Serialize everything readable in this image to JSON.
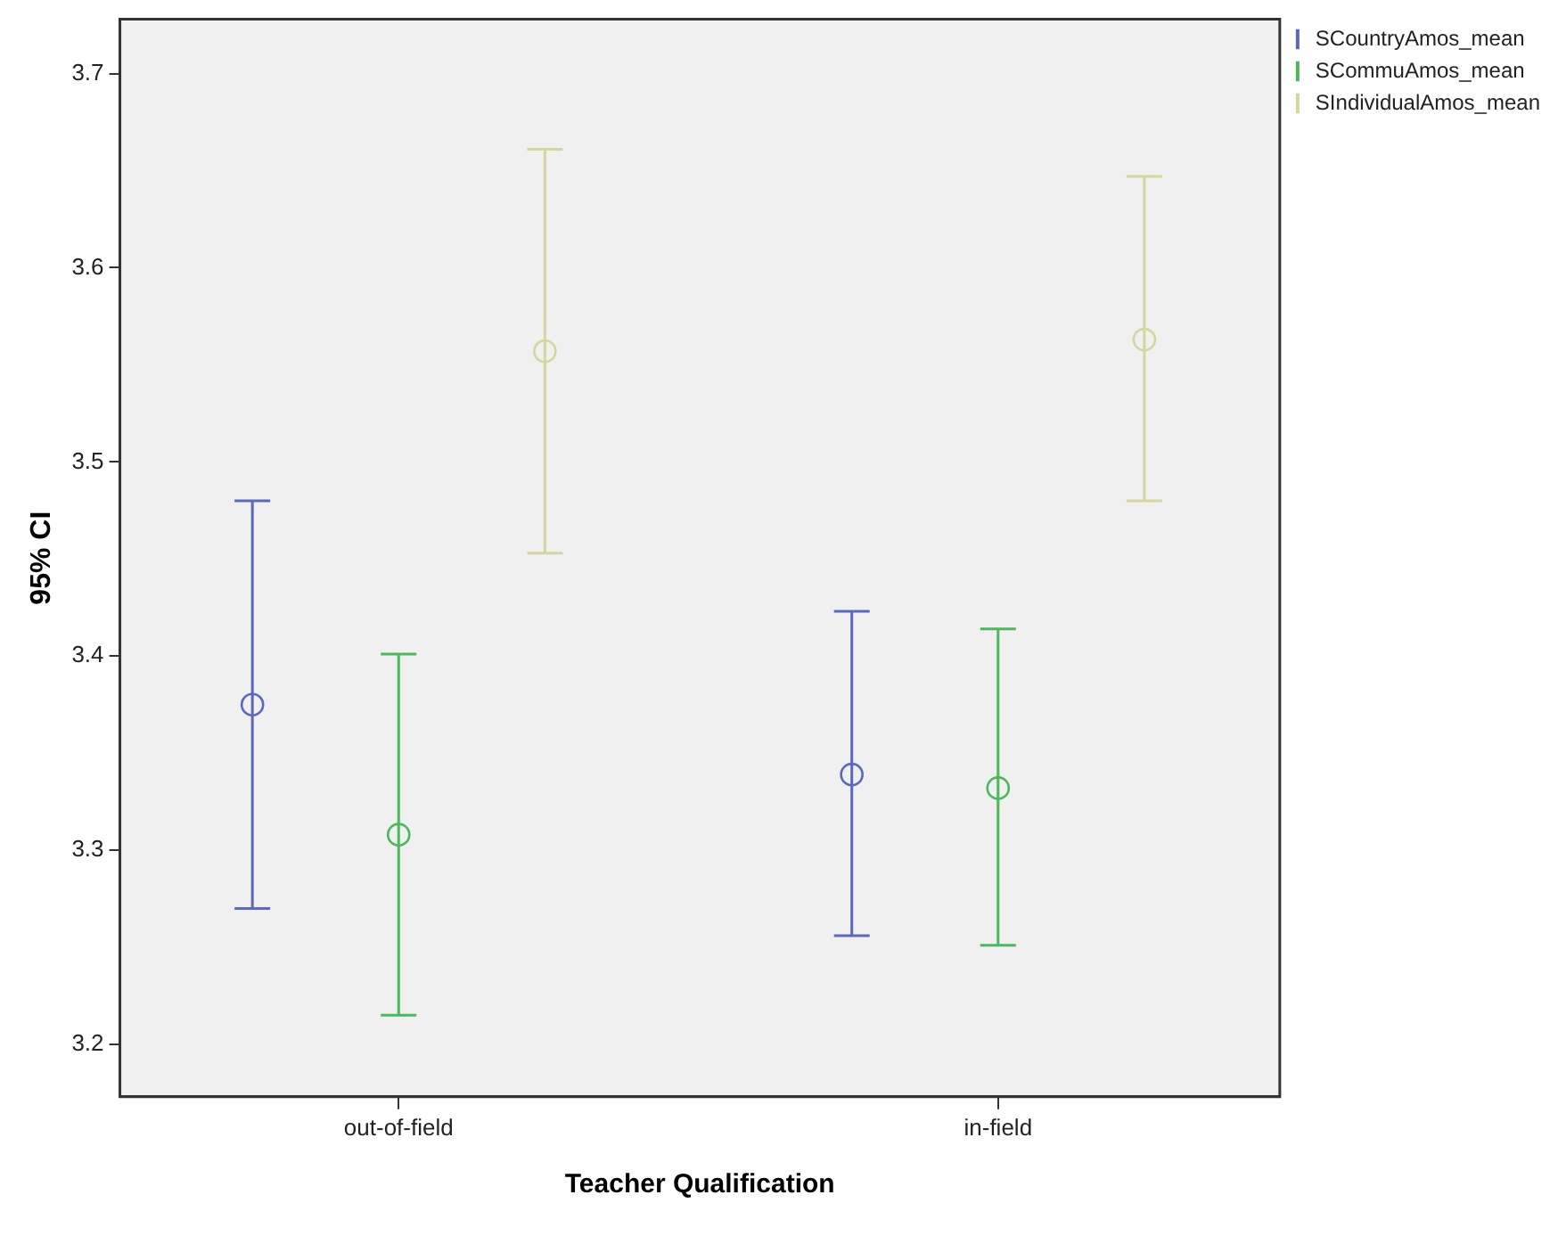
{
  "chart_data": {
    "type": "scatter",
    "xlabel": "Teacher Qualification",
    "ylabel": "95% CI",
    "categories": [
      "out-of-field",
      "in-field"
    ],
    "series": [
      {
        "name": "SCountryAmos_mean",
        "color": "#5b68c0",
        "values": [
          3.375,
          3.339
        ],
        "errors": [
          [
            3.27,
            3.48
          ],
          [
            3.256,
            3.423
          ]
        ]
      },
      {
        "name": "SCommuAmos_mean",
        "color": "#4cb85c",
        "values": [
          3.308,
          3.332
        ],
        "errors": [
          [
            3.215,
            3.401
          ],
          [
            3.251,
            3.414
          ]
        ]
      },
      {
        "name": "SIndividualAmos_mean",
        "color": "#d6d69c",
        "values": [
          3.557,
          3.563
        ],
        "errors": [
          [
            3.453,
            3.661
          ],
          [
            3.48,
            3.647
          ]
        ]
      }
    ],
    "ylim": [
      3.173,
      3.728
    ],
    "yticks": [
      3.2,
      3.3,
      3.4,
      3.5,
      3.6,
      3.7
    ],
    "grid": false,
    "legend": "top right",
    "marker": "circle"
  }
}
